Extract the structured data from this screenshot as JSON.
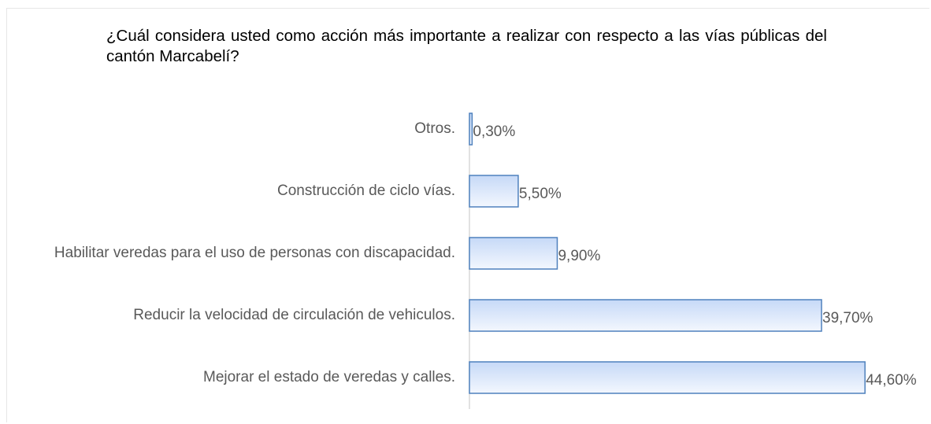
{
  "chart_data": {
    "type": "bar",
    "orientation": "horizontal",
    "title": "¿Cuál considera usted como acción más importante a realizar con respecto a las vías públicas del cantón Marcabelí?",
    "categories": [
      "Otros.",
      "Construcción de ciclo vías.",
      "Habilitar veredas para el uso de personas con discapacidad.",
      "Reducir la velocidad de circulación de vehiculos.",
      "Mejorar el estado de veredas y calles."
    ],
    "values": [
      0.3,
      5.5,
      9.9,
      39.7,
      44.6
    ],
    "value_labels": [
      "0,30%",
      "5,50%",
      "9,90%",
      "39,70%",
      "44,60%"
    ],
    "color": "#4f81bd",
    "xlim": [
      0,
      50
    ]
  }
}
